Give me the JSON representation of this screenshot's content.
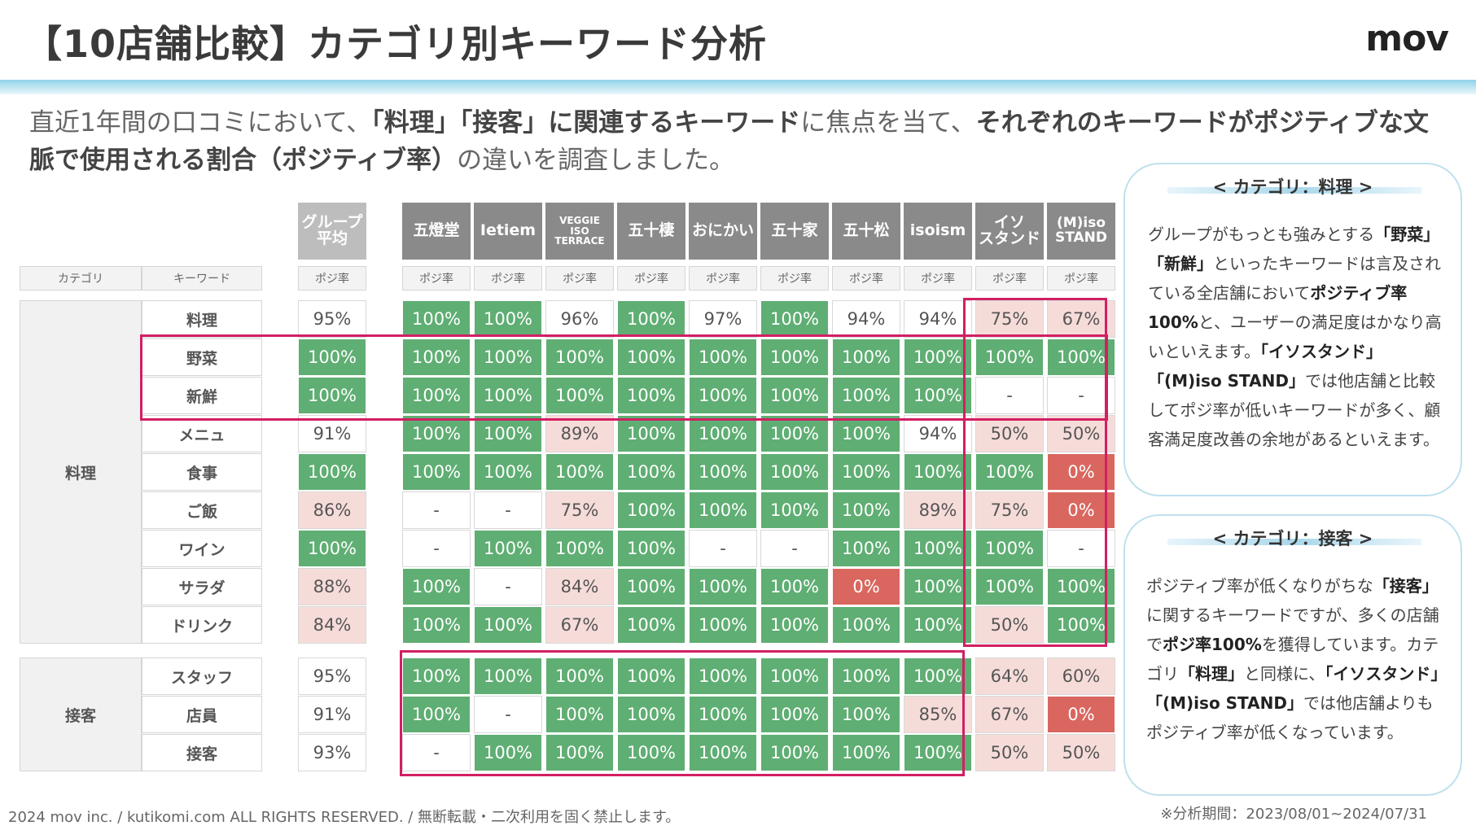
{
  "header": {
    "title": "【10店舗比較】カテゴリ別キーワード分析",
    "logo": "mov"
  },
  "intro": {
    "p1": "直近1年間の口コミにおいて、",
    "b1": "「料理」「接客」に関連するキーワード",
    "p2": "に焦点を当て、",
    "b2": "それぞれのキーワードがポジティブな文脈で使用される割合（ポジティブ率）",
    "p3": "の違いを調査しました。"
  },
  "table": {
    "col_category": "カテゴリ",
    "col_keyword": "キーワード",
    "metric_label": "ポジ率",
    "stores": [
      "グループ\n平均",
      "五燈堂",
      "Ietiem",
      "VEGGIE\nISO\nTERRACE",
      "五十棲",
      "おにかい",
      "五十家",
      "五十松",
      "isoism",
      "イソ\nスタンド",
      "(M)iso\nSTAND"
    ],
    "groups": [
      {
        "category": "料理",
        "rows": [
          {
            "keyword": "料理",
            "values": [
              "95%",
              "100%",
              "100%",
              "96%",
              "100%",
              "97%",
              "100%",
              "94%",
              "94%",
              "75%",
              "67%"
            ],
            "colors": [
              "w",
              "g",
              "g",
              "w",
              "g",
              "w",
              "g",
              "w",
              "w",
              "p",
              "p"
            ]
          },
          {
            "keyword": "野菜",
            "values": [
              "100%",
              "100%",
              "100%",
              "100%",
              "100%",
              "100%",
              "100%",
              "100%",
              "100%",
              "100%",
              "100%"
            ],
            "colors": [
              "g",
              "g",
              "g",
              "g",
              "g",
              "g",
              "g",
              "g",
              "g",
              "g",
              "g"
            ]
          },
          {
            "keyword": "新鮮",
            "values": [
              "100%",
              "100%",
              "100%",
              "100%",
              "100%",
              "100%",
              "100%",
              "100%",
              "100%",
              "-",
              "-"
            ],
            "colors": [
              "g",
              "g",
              "g",
              "g",
              "g",
              "g",
              "g",
              "g",
              "g",
              "w",
              "w"
            ]
          },
          {
            "keyword": "メニュ",
            "values": [
              "91%",
              "100%",
              "100%",
              "89%",
              "100%",
              "100%",
              "100%",
              "100%",
              "94%",
              "50%",
              "50%"
            ],
            "colors": [
              "w",
              "g",
              "g",
              "p",
              "g",
              "g",
              "g",
              "g",
              "w",
              "p",
              "p"
            ]
          },
          {
            "keyword": "食事",
            "values": [
              "100%",
              "100%",
              "100%",
              "100%",
              "100%",
              "100%",
              "100%",
              "100%",
              "100%",
              "100%",
              "0%"
            ],
            "colors": [
              "g",
              "g",
              "g",
              "g",
              "g",
              "g",
              "g",
              "g",
              "g",
              "g",
              "r"
            ]
          },
          {
            "keyword": "ご飯",
            "values": [
              "86%",
              "-",
              "-",
              "75%",
              "100%",
              "100%",
              "100%",
              "100%",
              "89%",
              "75%",
              "0%"
            ],
            "colors": [
              "p",
              "w",
              "w",
              "p",
              "g",
              "g",
              "g",
              "g",
              "p",
              "p",
              "r"
            ]
          },
          {
            "keyword": "ワイン",
            "values": [
              "100%",
              "-",
              "100%",
              "100%",
              "100%",
              "-",
              "-",
              "100%",
              "100%",
              "100%",
              "-"
            ],
            "colors": [
              "g",
              "w",
              "g",
              "g",
              "g",
              "w",
              "w",
              "g",
              "g",
              "g",
              "w"
            ]
          },
          {
            "keyword": "サラダ",
            "values": [
              "88%",
              "100%",
              "-",
              "84%",
              "100%",
              "100%",
              "100%",
              "0%",
              "100%",
              "100%",
              "100%"
            ],
            "colors": [
              "p",
              "g",
              "w",
              "p",
              "g",
              "g",
              "g",
              "r",
              "g",
              "g",
              "g"
            ]
          },
          {
            "keyword": "ドリンク",
            "values": [
              "84%",
              "100%",
              "100%",
              "67%",
              "100%",
              "100%",
              "100%",
              "100%",
              "100%",
              "50%",
              "100%"
            ],
            "colors": [
              "p",
              "g",
              "g",
              "p",
              "g",
              "g",
              "g",
              "g",
              "g",
              "p",
              "g"
            ]
          }
        ]
      },
      {
        "category": "接客",
        "rows": [
          {
            "keyword": "スタッフ",
            "values": [
              "95%",
              "100%",
              "100%",
              "100%",
              "100%",
              "100%",
              "100%",
              "100%",
              "100%",
              "64%",
              "60%"
            ],
            "colors": [
              "w",
              "g",
              "g",
              "g",
              "g",
              "g",
              "g",
              "g",
              "g",
              "p",
              "p"
            ]
          },
          {
            "keyword": "店員",
            "values": [
              "91%",
              "100%",
              "-",
              "100%",
              "100%",
              "100%",
              "100%",
              "100%",
              "85%",
              "67%",
              "0%"
            ],
            "colors": [
              "w",
              "g",
              "w",
              "g",
              "g",
              "g",
              "g",
              "g",
              "p",
              "p",
              "r"
            ]
          },
          {
            "keyword": "接客",
            "values": [
              "93%",
              "-",
              "100%",
              "100%",
              "100%",
              "100%",
              "100%",
              "100%",
              "100%",
              "50%",
              "50%"
            ],
            "colors": [
              "w",
              "w",
              "g",
              "g",
              "g",
              "g",
              "g",
              "g",
              "g",
              "p",
              "p"
            ]
          }
        ]
      }
    ]
  },
  "box1": {
    "title": "< カテゴリ：料理 >",
    "t1": "グループがもっとも強みとする",
    "b1": "「野菜」「新鮮」",
    "t2": "といったキーワードは言及されている全店舗において",
    "b2": "ポジティブ率100%",
    "t3": "と、ユーザーの満足度はかなり高いといえます。",
    "b3": "「イソスタンド」「(M)iso STAND」",
    "t4": "では他店舗と比較してポジ率が低いキーワードが多く、顧客満足度改善の余地があるといえます。"
  },
  "box2": {
    "title": "< カテゴリ：接客 >",
    "t1": "ポジティブ率が低くなりがちな",
    "b1": "「接客」",
    "t2": "に関するキーワードですが、多くの店舗で",
    "b2": "ポジ率100%",
    "t3": "を獲得しています。カテゴリ",
    "b3": "「料理」",
    "t4": "と同様に、",
    "b4": "「イソスタンド」「(M)iso STAND」",
    "t5": "では他店舗よりもポジティブ率が低くなっています。"
  },
  "footer": {
    "copyright": "2024 mov inc. / kutikomi.com ALL RIGHTS RESERVED. / 無断転載・二次利用を固く禁止します。",
    "period": "※分析期間：2023/08/01~2024/07/31"
  }
}
